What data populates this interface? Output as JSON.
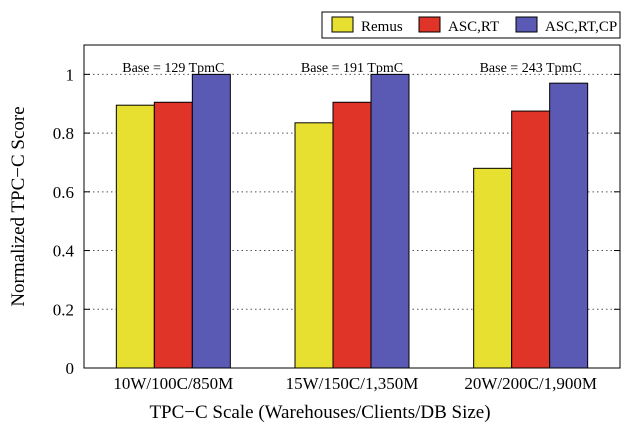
{
  "chart_data": {
    "type": "bar",
    "title": "",
    "xlabel": "TPC−C Scale (Warehouses/Clients/DB Size)",
    "ylabel": "Normalized TPC−C Score",
    "ylim": [
      0,
      1.1
    ],
    "yticks": [
      "0",
      "0.2",
      "0.4",
      "0.6",
      "0.8",
      "1"
    ],
    "categories": [
      "10W/100C/850M",
      "15W/150C/1,350M",
      "20W/200C/1,900M"
    ],
    "annotations": [
      "Base = 129 TpmC",
      "Base = 191 TpmC",
      "Base = 243 TpmC"
    ],
    "grid": "horizontal-dotted",
    "legend_position": "top-right",
    "series": [
      {
        "name": "Remus",
        "color": "#e8e030",
        "values": [
          0.895,
          0.835,
          0.68
        ]
      },
      {
        "name": "ASC,RT",
        "color": "#e03428",
        "values": [
          0.905,
          0.905,
          0.875
        ]
      },
      {
        "name": "ASC,RT,CP",
        "color": "#5a5ab5",
        "values": [
          1.0,
          1.0,
          0.97
        ]
      }
    ]
  }
}
